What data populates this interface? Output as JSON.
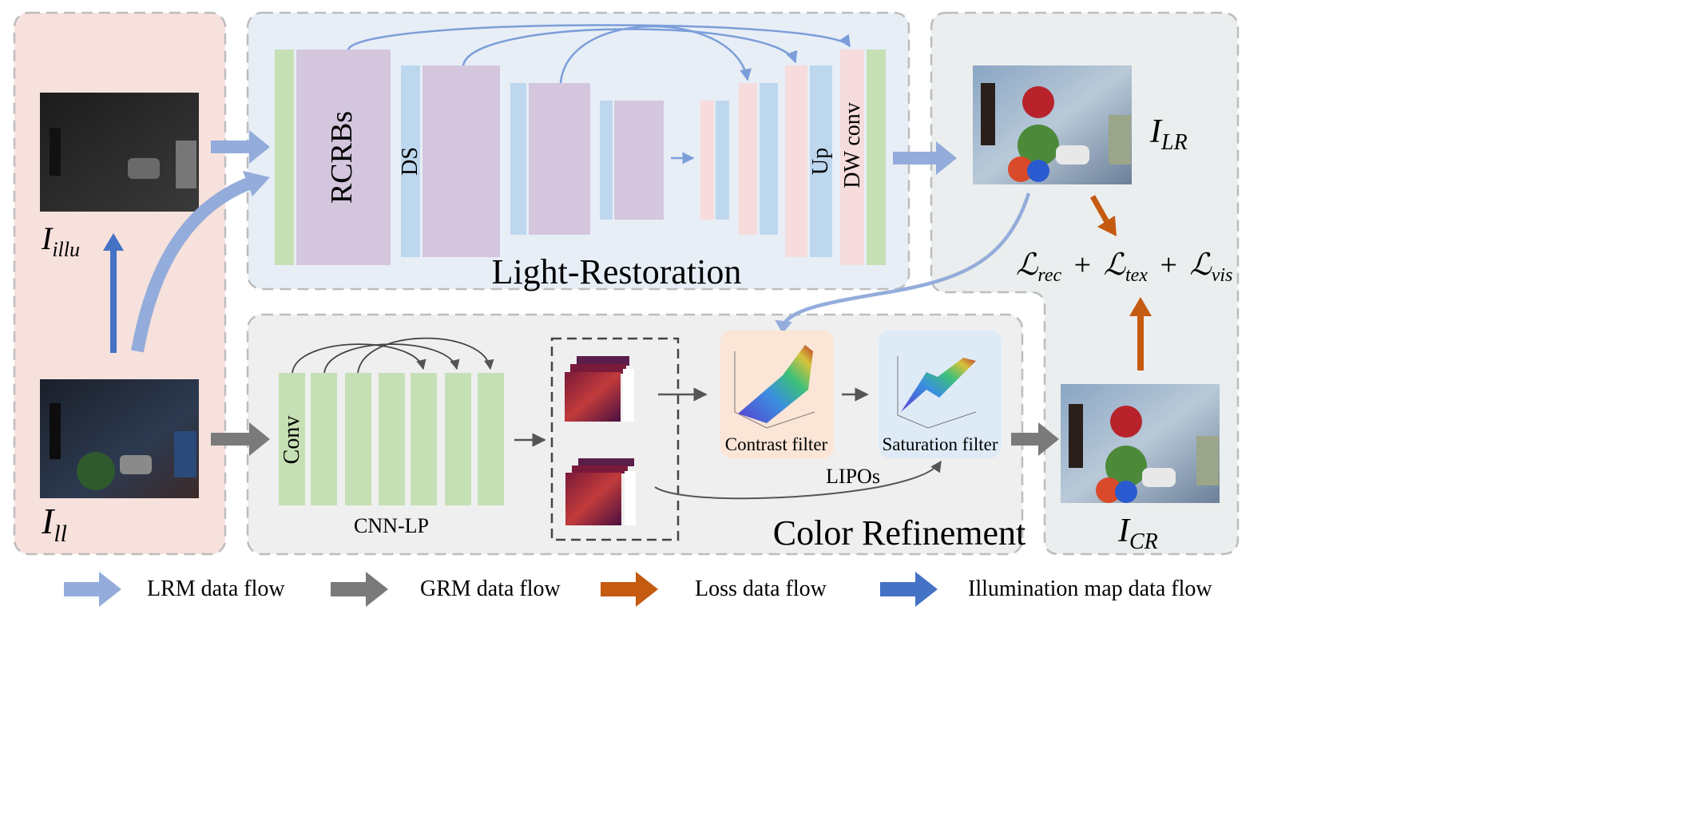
{
  "light_restoration": {
    "title": "Light-Restoration",
    "rcrbs_label": "RCRBs",
    "ds_label": "DS",
    "up_label": "Up",
    "dw_conv_label": "DW conv"
  },
  "color_refinement": {
    "title": "Color Refinement",
    "conv_label": "Conv",
    "cnn_lp_label": "CNN-LP",
    "contrast_filter_label": "Contrast filter",
    "saturation_filter_label": "Saturation filter",
    "lipos_label": "LIPOs"
  },
  "inputs": {
    "illu_symbol": "I",
    "illu_sub": "illu",
    "ll_symbol": "I",
    "ll_sub": "ll"
  },
  "outputs": {
    "lr_symbol": "I",
    "lr_sub": "LR",
    "cr_symbol": "I",
    "cr_sub": "CR"
  },
  "loss": {
    "terms": [
      {
        "symbol": "ℒ",
        "sub": "rec"
      },
      {
        "symbol": "ℒ",
        "sub": "tex"
      },
      {
        "symbol": "ℒ",
        "sub": "vis"
      }
    ],
    "operator": "+"
  },
  "legend": [
    {
      "label": "LRM data flow",
      "color": "#93acdb"
    },
    {
      "label": "GRM data flow",
      "color": "#7a7a7a"
    },
    {
      "label": "Loss data flow",
      "color": "#c55a11"
    },
    {
      "label": "Illumination map data flow",
      "color": "#4472c4"
    }
  ],
  "colors": {
    "input_panel": "#f7e1dc",
    "lr_panel": "#e7eef6",
    "cr_panel": "#efefef",
    "output_panel": "#ebeeee",
    "green_block": "#c5e0b4",
    "purple_block": "#d3c6dd",
    "blue_block": "#bdd7ee",
    "pink_block": "#f6dcdc",
    "contrast_bg": "#fbe5d6",
    "saturation_bg": "#deebf7"
  }
}
